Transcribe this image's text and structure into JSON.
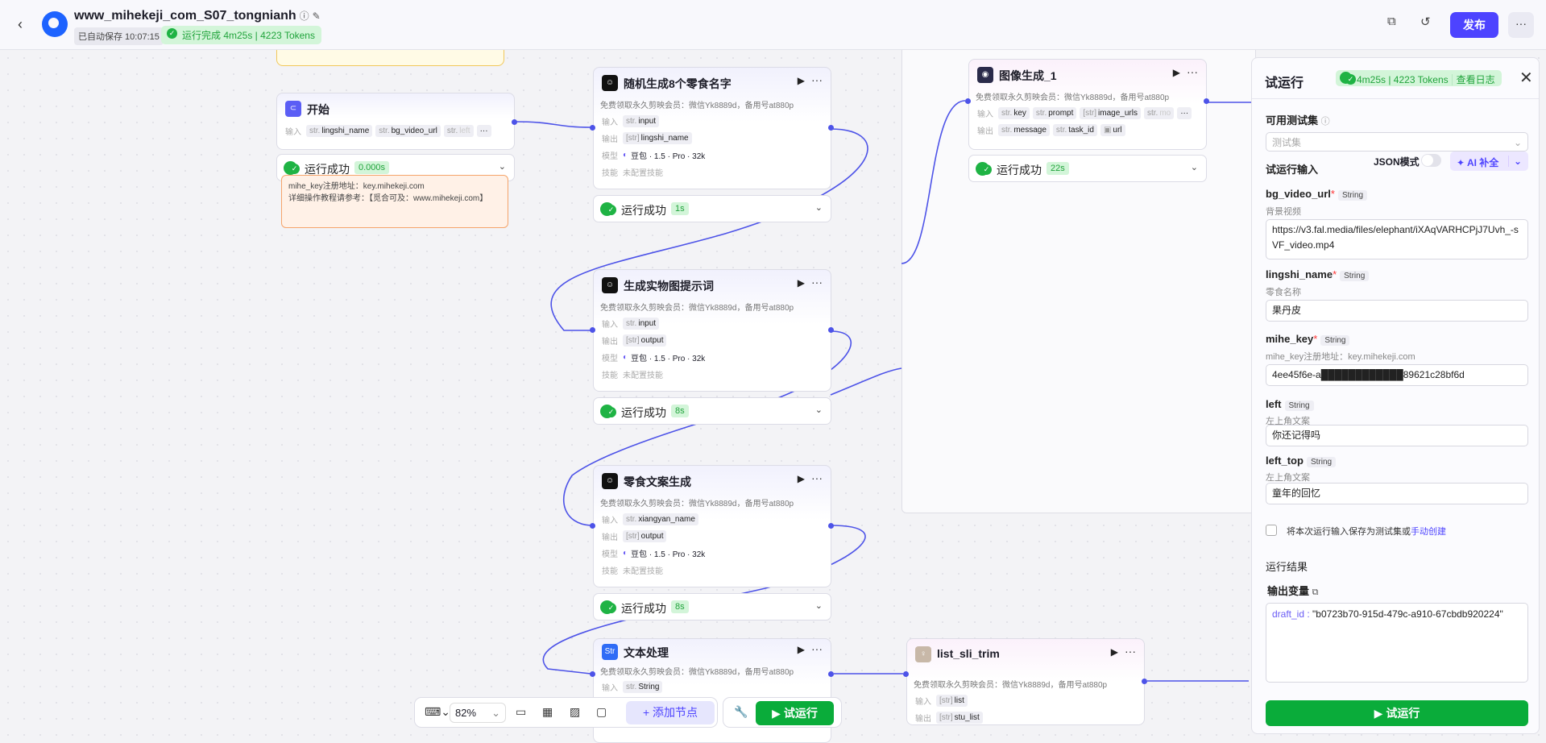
{
  "header": {
    "title": "www_mihekeji_com_S07_tongnianh",
    "autosave": "已自动保存 10:07:15",
    "run_status": "运行完成 4m25s | 4223 Tokens",
    "publish": "发布",
    "more": "···"
  },
  "start_node": {
    "title": "开始",
    "input_label": "输入",
    "inputs": [
      "lingshi_name",
      "bg_video_url",
      "left"
    ],
    "status": "运行成功",
    "time": "0.000s"
  },
  "note": {
    "line1": "mihe_key注册地址：key.mihekeji.com",
    "line2": "详细操作教程请参考：【觅合可及：www.mihekeji.com】"
  },
  "nodes": [
    {
      "id": "n1",
      "title": "随机生成8个零食名字",
      "desc": "免费领取永久剪映会员：微信Yk8889d，备用号at880p",
      "input": "input",
      "output": "lingshi_name",
      "model": "豆包 · 1.5 · Pro · 32k",
      "skill": "未配置技能",
      "status": "运行成功",
      "time": "1s"
    },
    {
      "id": "n2",
      "title": "生成实物图提示词",
      "desc": "免费领取永久剪映会员：微信Yk8889d，备用号at880p",
      "input": "input",
      "output": "output",
      "model": "豆包 · 1.5 · Pro · 32k",
      "skill": "未配置技能",
      "status": "运行成功",
      "time": "8s"
    },
    {
      "id": "n3",
      "title": "零食文案生成",
      "desc": "免费领取永久剪映会员：微信Yk8889d，备用号at880p",
      "input": "xiangyan_name",
      "output": "output",
      "model": "豆包 · 1.5 · Pro · 32k",
      "skill": "未配置技能",
      "status": "运行成功",
      "time": "8s"
    }
  ],
  "labels": {
    "input": "输入",
    "output": "输出",
    "model": "模型",
    "skill": "技能"
  },
  "image_node": {
    "title": "图像生成_1",
    "desc": "免费领取永久剪映会员：微信Yk8889d，备用号at880p",
    "inputs": [
      "key",
      "prompt",
      "image_urls",
      "mo"
    ],
    "outputs": [
      "message",
      "task_id",
      "url"
    ],
    "status": "运行成功",
    "time": "22s"
  },
  "text_node": {
    "title": "文本处理",
    "desc": "免费领取永久剪映会员：微信Yk8889d，备用号at880p",
    "input": "String"
  },
  "list_node": {
    "title": "list_sli_trim",
    "desc": "免费领取永久剪映会员：微信Yk8889d，备用号at880p",
    "input": "list",
    "output": "stu_list"
  },
  "toolbar": {
    "zoom": "82%",
    "add_node": "+ 添加节点",
    "run": "▶ 试运行"
  },
  "panel": {
    "title": "试运行",
    "badge": "4m25s | 4223 Tokens",
    "view_log": "查看日志",
    "testset_label": "可用测试集",
    "testset_placeholder": "测试集",
    "input_label": "试运行输入",
    "json_mode": "JSON模式",
    "ai_fill": "✦ AI 补全",
    "fields": [
      {
        "name": "bg_video_url",
        "required": true,
        "type": "String",
        "desc": "背景视频",
        "value": "https://v3.fal.media/files/elephant/iXAqVARHCPjJ7Uvh_-sVF_video.mp4"
      },
      {
        "name": "lingshi_name",
        "required": true,
        "type": "String",
        "desc": "零食名称",
        "value": "果丹皮"
      },
      {
        "name": "mihe_key",
        "required": true,
        "type": "String",
        "desc": "mihe_key注册地址：key.mihekeji.com",
        "value": "4ee45f6e-a████████████89621c28bf6d"
      },
      {
        "name": "left",
        "required": false,
        "type": "String",
        "desc": "左上角文案",
        "value": "你还记得吗"
      },
      {
        "name": "left_top",
        "required": false,
        "type": "String",
        "desc": "左上角文案",
        "value": "童年的回忆"
      }
    ],
    "save_text": "将本次运行输入保存为测试集或",
    "save_link": "手动创建",
    "result_label": "运行结果",
    "output_label": "输出变量",
    "output_key": "draft_id",
    "output_value": "\"b0723b70-915d-479c-a910-67cbdb920224\"",
    "run": "▶  试运行"
  },
  "colors": {
    "accent": "#4d43ff",
    "success": "#0aac3a",
    "edge": "#4d53e8"
  }
}
